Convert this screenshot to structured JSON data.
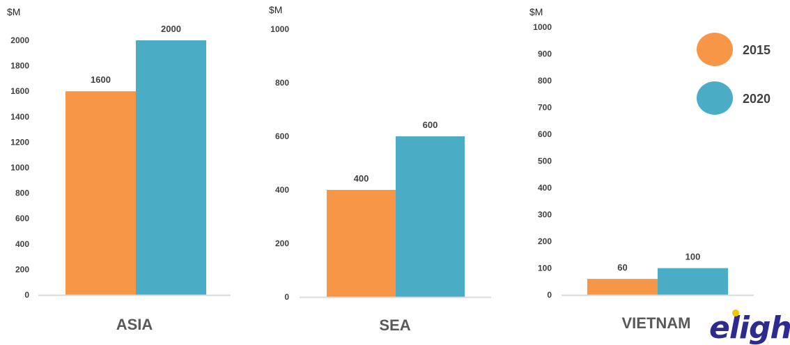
{
  "colors": {
    "2015": "#f79646",
    "2020": "#4bacc6",
    "axis": "#d9d9d9"
  },
  "legend": [
    {
      "name": "2015",
      "color": "#f79646"
    },
    {
      "name": "2020",
      "color": "#4bacc6"
    }
  ],
  "logo": {
    "text": "elight",
    "dot_color": "#f5c400"
  },
  "chart_data": [
    {
      "type": "bar",
      "xlabel": "ASIA",
      "ylabel": "$M",
      "ylim": [
        0,
        2000
      ],
      "yticks": [
        0,
        200,
        400,
        600,
        800,
        1000,
        1200,
        1400,
        1600,
        1800,
        2000
      ],
      "series": [
        {
          "name": "2015",
          "values": [
            1600
          ]
        },
        {
          "name": "2020",
          "values": [
            2000
          ]
        }
      ]
    },
    {
      "type": "bar",
      "xlabel": "SEA",
      "ylabel": "$M",
      "ylim": [
        0,
        1000
      ],
      "yticks": [
        0,
        200,
        400,
        600,
        800,
        1000
      ],
      "series": [
        {
          "name": "2015",
          "values": [
            400
          ]
        },
        {
          "name": "2020",
          "values": [
            600
          ]
        }
      ]
    },
    {
      "type": "bar",
      "xlabel": "VIETNAM",
      "ylabel": "$M",
      "ylim": [
        0,
        1000
      ],
      "yticks": [
        0,
        100,
        200,
        300,
        400,
        500,
        600,
        700,
        800,
        900,
        1000
      ],
      "series": [
        {
          "name": "2015",
          "values": [
            60
          ]
        },
        {
          "name": "2020",
          "values": [
            100
          ]
        }
      ]
    }
  ]
}
